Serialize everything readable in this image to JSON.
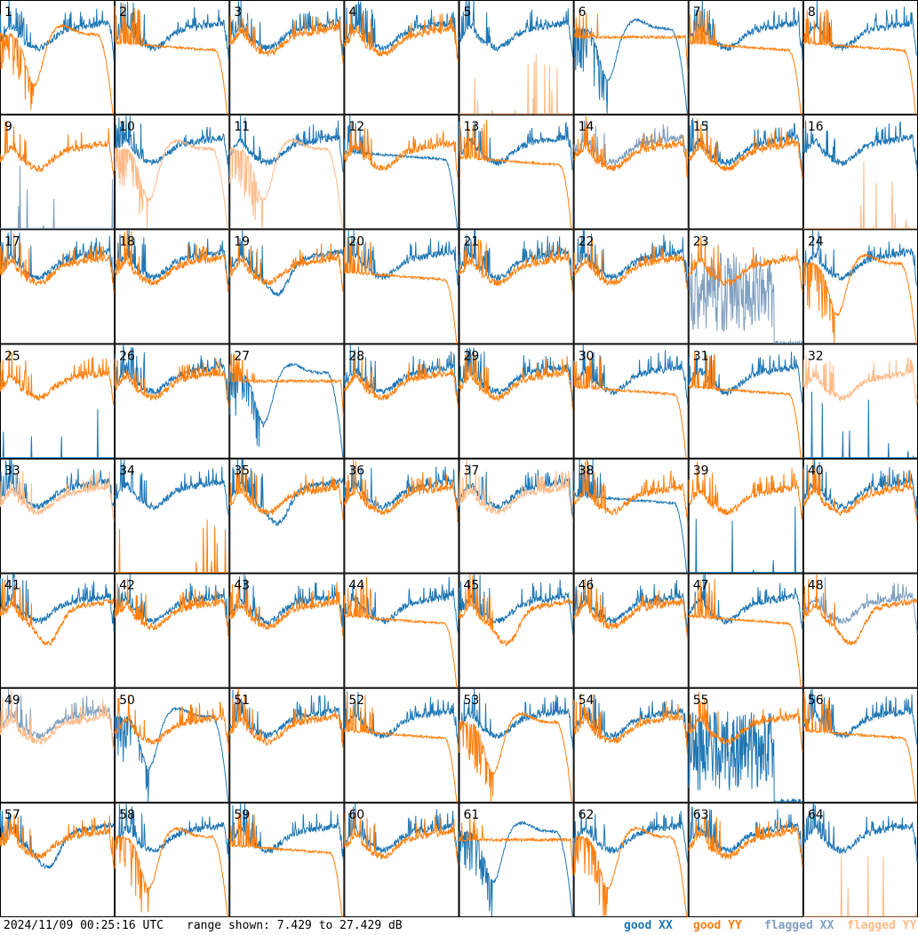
{
  "footer": {
    "timestamp": "2024/11/09 00:25:16 UTC",
    "range_text": "range shown: 7.429 to 27.429 dB"
  },
  "legend": {
    "good_xx": "good XX",
    "good_yy": "good YY",
    "flagged_xx": "flagged XX",
    "flagged_yy": "flagged YY"
  },
  "colors": {
    "good_xx": "#1f77b4",
    "good_yy": "#ff7f0e",
    "flagged_xx": "#7f9fbf",
    "flagged_yy": "#ffbb88"
  },
  "chart_data": {
    "type": "line",
    "layout": "8x8 small multiples",
    "ylim": [
      7.429,
      27.429
    ],
    "y_unit": "dB",
    "panels": [
      {
        "label": "1",
        "xx": "good",
        "yy": "good",
        "xx_shape": "normal",
        "yy_shape": "dip_roll"
      },
      {
        "label": "2",
        "xx": "good",
        "yy": "good",
        "xx_shape": "normal",
        "yy_shape": "flat_roll"
      },
      {
        "label": "3",
        "xx": "good",
        "yy": "good",
        "xx_shape": "normal",
        "yy_shape": "normal"
      },
      {
        "label": "4",
        "xx": "good",
        "yy": "good",
        "xx_shape": "normal",
        "yy_shape": "normal"
      },
      {
        "label": "5",
        "xx": "good",
        "yy": "flagged",
        "xx_shape": "normal",
        "yy_shape": "spike"
      },
      {
        "label": "6",
        "xx": "good",
        "yy": "good",
        "xx_shape": "dip_roll",
        "yy_shape": "flat"
      },
      {
        "label": "7",
        "xx": "good",
        "yy": "good",
        "xx_shape": "normal",
        "yy_shape": "flat_roll"
      },
      {
        "label": "8",
        "xx": "good",
        "yy": "good",
        "xx_shape": "normal",
        "yy_shape": "flat_roll"
      },
      {
        "label": "9",
        "xx": "flagged",
        "yy": "good",
        "xx_shape": "spike",
        "yy_shape": "normal"
      },
      {
        "label": "10",
        "xx": "good",
        "yy": "flagged",
        "xx_shape": "normal",
        "yy_shape": "dip_roll"
      },
      {
        "label": "11",
        "xx": "good",
        "yy": "flagged",
        "xx_shape": "normal",
        "yy_shape": "dip_roll"
      },
      {
        "label": "12",
        "xx": "good",
        "yy": "good",
        "xx_shape": "flat_roll",
        "yy_shape": "normal"
      },
      {
        "label": "13",
        "xx": "good",
        "yy": "good",
        "xx_shape": "normal",
        "yy_shape": "flat_roll"
      },
      {
        "label": "14",
        "xx": "flagged",
        "yy": "good",
        "xx_shape": "normal",
        "yy_shape": "normal"
      },
      {
        "label": "15",
        "xx": "good",
        "yy": "good",
        "xx_shape": "normal",
        "yy_shape": "normal"
      },
      {
        "label": "16",
        "xx": "good",
        "yy": "flagged",
        "xx_shape": "normal",
        "yy_shape": "spike"
      },
      {
        "label": "17",
        "xx": "good",
        "yy": "good",
        "xx_shape": "normal",
        "yy_shape": "normal"
      },
      {
        "label": "18",
        "xx": "good",
        "yy": "good",
        "xx_shape": "normal",
        "yy_shape": "normal"
      },
      {
        "label": "19",
        "xx": "good",
        "yy": "good",
        "xx_shape": "dip",
        "yy_shape": "normal"
      },
      {
        "label": "20",
        "xx": "good",
        "yy": "good",
        "xx_shape": "normal",
        "yy_shape": "flat_roll"
      },
      {
        "label": "21",
        "xx": "good",
        "yy": "good",
        "xx_shape": "normal",
        "yy_shape": "normal"
      },
      {
        "label": "22",
        "xx": "good",
        "yy": "good",
        "xx_shape": "normal",
        "yy_shape": "normal"
      },
      {
        "label": "23",
        "xx": "flagged",
        "yy": "good",
        "xx_shape": "noise",
        "yy_shape": "normal"
      },
      {
        "label": "24",
        "xx": "good",
        "yy": "good",
        "xx_shape": "normal",
        "yy_shape": "dip_roll"
      },
      {
        "label": "25",
        "xx": "good",
        "yy": "good",
        "xx_shape": "spike",
        "yy_shape": "normal"
      },
      {
        "label": "26",
        "xx": "good",
        "yy": "good",
        "xx_shape": "normal",
        "yy_shape": "normal"
      },
      {
        "label": "27",
        "xx": "good",
        "yy": "good",
        "xx_shape": "dip_roll",
        "yy_shape": "flat"
      },
      {
        "label": "28",
        "xx": "good",
        "yy": "good",
        "xx_shape": "normal",
        "yy_shape": "normal"
      },
      {
        "label": "29",
        "xx": "good",
        "yy": "good",
        "xx_shape": "normal",
        "yy_shape": "normal"
      },
      {
        "label": "30",
        "xx": "good",
        "yy": "good",
        "xx_shape": "normal",
        "yy_shape": "flat_roll"
      },
      {
        "label": "31",
        "xx": "good",
        "yy": "good",
        "xx_shape": "normal",
        "yy_shape": "flat_roll"
      },
      {
        "label": "32",
        "xx": "good",
        "yy": "flagged",
        "xx_shape": "spike",
        "yy_shape": "normal"
      },
      {
        "label": "33",
        "xx": "good",
        "yy": "flagged",
        "xx_shape": "normal",
        "yy_shape": "normal"
      },
      {
        "label": "34",
        "xx": "good",
        "yy": "good",
        "xx_shape": "normal",
        "yy_shape": "spike"
      },
      {
        "label": "35",
        "xx": "good",
        "yy": "good",
        "xx_shape": "dip",
        "yy_shape": "normal"
      },
      {
        "label": "36",
        "xx": "good",
        "yy": "good",
        "xx_shape": "normal",
        "yy_shape": "normal"
      },
      {
        "label": "37",
        "xx": "good",
        "yy": "flagged",
        "xx_shape": "normal",
        "yy_shape": "normal"
      },
      {
        "label": "38",
        "xx": "good",
        "yy": "good",
        "xx_shape": "flat_roll",
        "yy_shape": "normal"
      },
      {
        "label": "39",
        "xx": "good",
        "yy": "good",
        "xx_shape": "spike",
        "yy_shape": "normal"
      },
      {
        "label": "40",
        "xx": "good",
        "yy": "good",
        "xx_shape": "normal",
        "yy_shape": "normal"
      },
      {
        "label": "41",
        "xx": "good",
        "yy": "good",
        "xx_shape": "normal",
        "yy_shape": "dip"
      },
      {
        "label": "42",
        "xx": "good",
        "yy": "good",
        "xx_shape": "normal",
        "yy_shape": "normal"
      },
      {
        "label": "43",
        "xx": "good",
        "yy": "good",
        "xx_shape": "normal",
        "yy_shape": "normal"
      },
      {
        "label": "44",
        "xx": "good",
        "yy": "good",
        "xx_shape": "normal",
        "yy_shape": "flat_roll"
      },
      {
        "label": "45",
        "xx": "good",
        "yy": "good",
        "xx_shape": "normal",
        "yy_shape": "dip"
      },
      {
        "label": "46",
        "xx": "good",
        "yy": "good",
        "xx_shape": "normal",
        "yy_shape": "normal"
      },
      {
        "label": "47",
        "xx": "good",
        "yy": "good",
        "xx_shape": "normal",
        "yy_shape": "flat_roll"
      },
      {
        "label": "48",
        "xx": "flagged",
        "yy": "good",
        "xx_shape": "normal",
        "yy_shape": "dip"
      },
      {
        "label": "49",
        "xx": "flagged",
        "yy": "flagged",
        "xx_shape": "normal",
        "yy_shape": "normal"
      },
      {
        "label": "50",
        "xx": "good",
        "yy": "good",
        "xx_shape": "dip_roll",
        "yy_shape": "normal"
      },
      {
        "label": "51",
        "xx": "good",
        "yy": "good",
        "xx_shape": "normal",
        "yy_shape": "normal"
      },
      {
        "label": "52",
        "xx": "good",
        "yy": "good",
        "xx_shape": "normal",
        "yy_shape": "flat_roll"
      },
      {
        "label": "53",
        "xx": "good",
        "yy": "good",
        "xx_shape": "normal",
        "yy_shape": "dip_roll"
      },
      {
        "label": "54",
        "xx": "good",
        "yy": "good",
        "xx_shape": "normal",
        "yy_shape": "normal"
      },
      {
        "label": "55",
        "xx": "good",
        "yy": "good",
        "xx_shape": "noise",
        "yy_shape": "normal"
      },
      {
        "label": "56",
        "xx": "good",
        "yy": "good",
        "xx_shape": "normal",
        "yy_shape": "flat_roll"
      },
      {
        "label": "57",
        "xx": "good",
        "yy": "good",
        "xx_shape": "dip",
        "yy_shape": "normal"
      },
      {
        "label": "58",
        "xx": "good",
        "yy": "good",
        "xx_shape": "normal",
        "yy_shape": "dip_roll"
      },
      {
        "label": "59",
        "xx": "good",
        "yy": "good",
        "xx_shape": "normal",
        "yy_shape": "flat_roll"
      },
      {
        "label": "60",
        "xx": "good",
        "yy": "good",
        "xx_shape": "normal",
        "yy_shape": "normal"
      },
      {
        "label": "61",
        "xx": "good",
        "yy": "good",
        "xx_shape": "dip_roll",
        "yy_shape": "flat"
      },
      {
        "label": "62",
        "xx": "good",
        "yy": "good",
        "xx_shape": "normal",
        "yy_shape": "dip_roll"
      },
      {
        "label": "63",
        "xx": "good",
        "yy": "good",
        "xx_shape": "normal",
        "yy_shape": "normal"
      },
      {
        "label": "64",
        "xx": "good",
        "yy": "flagged",
        "xx_shape": "normal",
        "yy_shape": "spike"
      }
    ]
  }
}
